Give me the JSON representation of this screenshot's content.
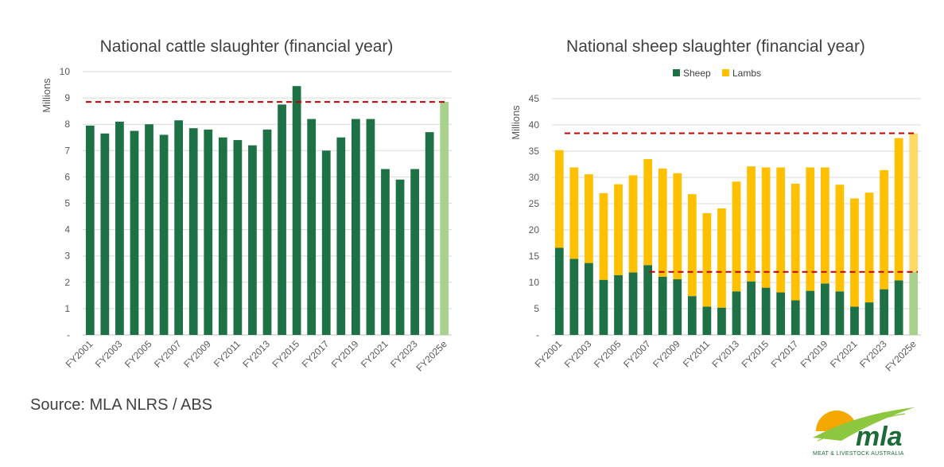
{
  "source": "Source: MLA NLRS / ABS",
  "logo": {
    "word": "mla",
    "tagline": "MEAT & LIVESTOCK AUSTRALIA"
  },
  "colors": {
    "green": "#1e7145",
    "light_green": "#a9d18e",
    "gold": "#ffc000",
    "light_gold": "#ffd966",
    "dashed": "#c00000",
    "grid": "#d9d9d9"
  },
  "chart_data": [
    {
      "type": "bar",
      "title": "National cattle slaughter (financial year)",
      "ylabel": "Millions",
      "ylim": [
        0,
        10
      ],
      "yticks": [
        "-",
        "1",
        "2",
        "3",
        "4",
        "5",
        "6",
        "7",
        "8",
        "9",
        "10"
      ],
      "categories": [
        "FY2001",
        "FY2002",
        "FY2003",
        "FY2004",
        "FY2005",
        "FY2006",
        "FY2007",
        "FY2008",
        "FY2009",
        "FY2010",
        "FY2011",
        "FY2012",
        "FY2013",
        "FY2014",
        "FY2015",
        "FY2016",
        "FY2017",
        "FY2018",
        "FY2019",
        "FY2020",
        "FY2021",
        "FY2022",
        "FY2023",
        "FY2024",
        "FY2025e"
      ],
      "xtick_labels": [
        "FY2001",
        "",
        "FY2003",
        "",
        "FY2005",
        "",
        "FY2007",
        "",
        "FY2009",
        "",
        "FY2011",
        "",
        "FY2013",
        "",
        "FY2015",
        "",
        "FY2017",
        "",
        "FY2019",
        "",
        "FY2021",
        "",
        "FY2023",
        "",
        "FY2025e"
      ],
      "values": [
        7.95,
        7.65,
        8.1,
        7.75,
        8.0,
        7.6,
        8.15,
        7.85,
        7.8,
        7.5,
        7.4,
        7.2,
        7.8,
        8.75,
        9.45,
        8.2,
        7.0,
        7.5,
        8.2,
        8.2,
        6.3,
        5.9,
        6.3,
        7.7,
        8.85
      ],
      "estimate_last": true,
      "reference_line": 8.85,
      "grid": true
    },
    {
      "type": "stacked_bar",
      "title": "National sheep slaughter (financial year)",
      "ylabel": "Millions",
      "ylim": [
        0,
        45
      ],
      "yticks": [
        "-",
        "5",
        "10",
        "15",
        "20",
        "25",
        "30",
        "35",
        "40",
        "45"
      ],
      "legend": [
        "Sheep",
        "Lambs"
      ],
      "legend_position": "top",
      "categories": [
        "FY2001",
        "FY2002",
        "FY2003",
        "FY2004",
        "FY2005",
        "FY2006",
        "FY2007",
        "FY2008",
        "FY2009",
        "FY2010",
        "FY2011",
        "FY2012",
        "FY2013",
        "FY2014",
        "FY2015",
        "FY2016",
        "FY2017",
        "FY2018",
        "FY2019",
        "FY2020",
        "FY2021",
        "FY2022",
        "FY2023",
        "FY2024",
        "FY2025e"
      ],
      "xtick_labels": [
        "FY2001",
        "",
        "FY2003",
        "",
        "FY2005",
        "",
        "FY2007",
        "",
        "FY2009",
        "",
        "FY2011",
        "",
        "FY2013",
        "",
        "FY2015",
        "",
        "FY2017",
        "",
        "FY2019",
        "",
        "FY2021",
        "",
        "FY2023",
        "",
        "FY2025e"
      ],
      "series": [
        {
          "name": "Sheep",
          "values": [
            16.6,
            14.5,
            13.7,
            10.5,
            11.4,
            11.9,
            13.3,
            11.1,
            10.6,
            7.4,
            5.4,
            5.2,
            8.3,
            10.2,
            9.0,
            8.1,
            6.6,
            8.4,
            9.8,
            8.3,
            5.4,
            6.2,
            8.7,
            10.4,
            12.0
          ]
        },
        {
          "name": "Lambs",
          "values": [
            18.6,
            17.4,
            16.9,
            16.5,
            17.3,
            18.5,
            20.2,
            20.6,
            20.2,
            19.4,
            17.8,
            18.9,
            20.9,
            21.9,
            22.9,
            23.8,
            22.2,
            23.5,
            22.1,
            20.3,
            20.6,
            20.9,
            22.7,
            27.1,
            26.4
          ]
        }
      ],
      "estimate_last": true,
      "reference_lines": [
        38.4,
        12.0
      ],
      "grid": true
    }
  ]
}
